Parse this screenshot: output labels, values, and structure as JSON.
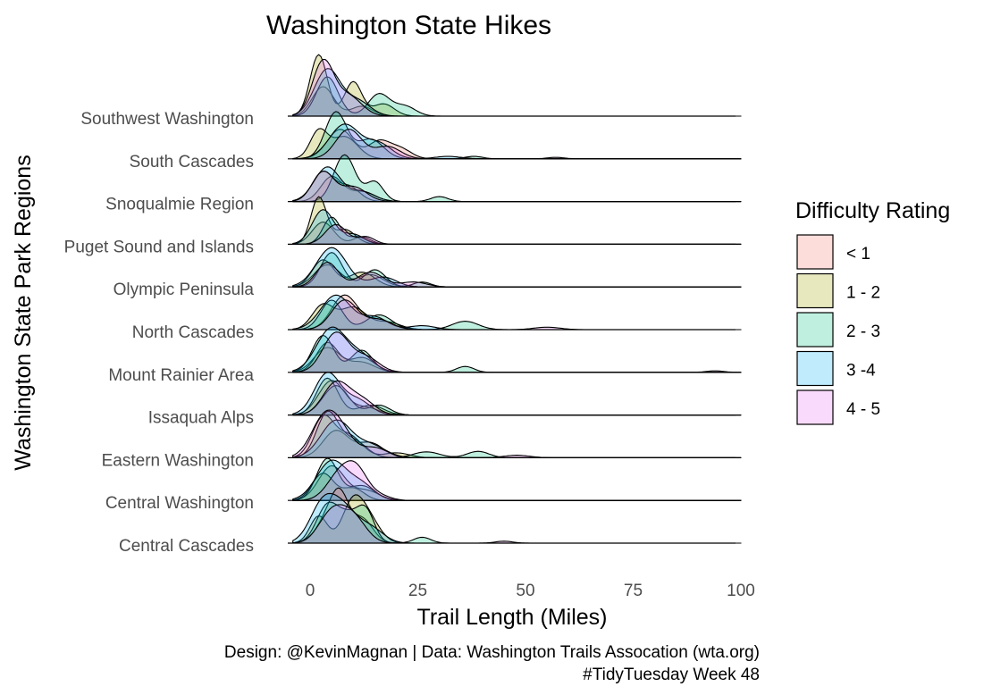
{
  "chart_data": {
    "type": "ridgeline",
    "title": "Washington State Hikes",
    "xlabel": "Trail Length (Miles)",
    "ylabel": "Washington State Park Regions",
    "xlim": [
      -5,
      100
    ],
    "x_ticks": [
      0,
      25,
      50,
      75,
      100
    ],
    "categories": [
      "Central Cascades",
      "Central Washington",
      "Eastern Washington",
      "Issaquah Alps",
      "Mount Rainier Area",
      "North Cascades",
      "Olympic Peninsula",
      "Puget Sound and Islands",
      "Snoqualmie Region",
      "South Cascades",
      "Southwest Washington"
    ],
    "legend": {
      "title": "Difficulty Rating",
      "position": "right",
      "items": [
        {
          "label": "< 1",
          "color": "#F8766D"
        },
        {
          "label": "1 - 2",
          "color": "#A3A500"
        },
        {
          "label": "2 - 3",
          "color": "#00BF7D"
        },
        {
          "label": "3  -4",
          "color": "#00B0F6"
        },
        {
          "label": "4 - 5",
          "color": "#E76BF3"
        }
      ]
    },
    "series": [
      {
        "name": "< 1",
        "color": "#F8766D"
      },
      {
        "name": "1 - 2",
        "color": "#A3A500"
      },
      {
        "name": "2 - 3",
        "color": "#00BF7D"
      },
      {
        "name": "3  -4",
        "color": "#00B0F6"
      },
      {
        "name": "4 - 5",
        "color": "#E76BF3"
      }
    ],
    "densities": [
      [
        [
          [
            4,
            0.5,
            2.5
          ],
          [
            7,
            0.8,
            2
          ],
          [
            12,
            0.5,
            2.5
          ]
        ],
        [
          [
            2,
            0.55,
            2
          ],
          [
            10,
            0.85,
            2.5
          ],
          [
            14,
            0.4,
            2.5
          ]
        ],
        [
          [
            4,
            0.75,
            2.5
          ],
          [
            9,
            0.5,
            2.5
          ],
          [
            13,
            0.6,
            2
          ],
          [
            26,
            0.12,
            2
          ]
        ],
        [
          [
            3,
            0.8,
            3
          ],
          [
            8,
            0.6,
            3
          ],
          [
            14,
            0.3,
            3
          ]
        ],
        [
          [
            5,
            0.6,
            3
          ],
          [
            10,
            0.5,
            3
          ],
          [
            45,
            0.04,
            2
          ]
        ]
      ],
      [
        [
          [
            5,
            0.7,
            3
          ],
          [
            13,
            0.2,
            3
          ]
        ],
        [
          [
            3,
            0.55,
            2.5
          ],
          [
            10,
            0.25,
            2.5
          ]
        ],
        [
          [
            4,
            0.85,
            2.5
          ],
          [
            12,
            0.3,
            3
          ]
        ],
        [
          [
            5,
            0.8,
            3.5
          ],
          [
            12,
            0.3,
            3
          ]
        ],
        [
          [
            7,
            0.55,
            3
          ],
          [
            11,
            0.5,
            2.5
          ],
          [
            16,
            0.1,
            2.5
          ]
        ]
      ],
      [
        [
          [
            6,
            0.55,
            3
          ],
          [
            14,
            0.3,
            3
          ]
        ],
        [
          [
            3,
            0.8,
            2.5
          ],
          [
            9,
            0.45,
            3
          ],
          [
            20,
            0.1,
            3
          ]
        ],
        [
          [
            4,
            0.9,
            2.5
          ],
          [
            10,
            0.35,
            3
          ],
          [
            27,
            0.12,
            3
          ],
          [
            39,
            0.13,
            2.5
          ]
        ],
        [
          [
            6,
            0.75,
            3.5
          ],
          [
            14,
            0.25,
            3.5
          ]
        ],
        [
          [
            3,
            0.7,
            3
          ],
          [
            7,
            0.5,
            3
          ],
          [
            15,
            0.2,
            3
          ],
          [
            48,
            0.05,
            3
          ]
        ]
      ],
      [
        [
          [
            5,
            0.7,
            3
          ],
          [
            13,
            0.15,
            3
          ]
        ],
        [
          [
            4,
            0.75,
            2.5
          ],
          [
            14,
            0.2,
            3
          ]
        ],
        [
          [
            6,
            0.6,
            3
          ],
          [
            16,
            0.2,
            2.5
          ]
        ],
        [
          [
            4,
            0.85,
            3
          ],
          [
            11,
            0.3,
            3
          ]
        ],
        [
          [
            6,
            0.65,
            3
          ],
          [
            12,
            0.3,
            3
          ]
        ]
      ],
      [
        [
          [
            4,
            0.5,
            3
          ],
          [
            12,
            0.2,
            3
          ]
        ],
        [
          [
            4,
            0.6,
            2.5
          ],
          [
            12,
            0.3,
            3
          ]
        ],
        [
          [
            3,
            0.75,
            2.5
          ],
          [
            12,
            0.45,
            2.5
          ],
          [
            36,
            0.12,
            2
          ]
        ],
        [
          [
            5,
            0.9,
            3.5
          ],
          [
            12,
            0.3,
            3
          ]
        ],
        [
          [
            6,
            0.8,
            3
          ],
          [
            13,
            0.3,
            3
          ],
          [
            94,
            0.03,
            2
          ]
        ]
      ],
      [
        [
          [
            8,
            0.7,
            3
          ],
          [
            16,
            0.2,
            3
          ]
        ],
        [
          [
            3,
            0.5,
            2.5
          ],
          [
            10,
            0.45,
            3
          ],
          [
            18,
            0.15,
            3
          ]
        ],
        [
          [
            5,
            0.6,
            2.5
          ],
          [
            16,
            0.3,
            3
          ],
          [
            36,
            0.17,
            3
          ]
        ],
        [
          [
            6,
            0.7,
            3.5
          ],
          [
            15,
            0.25,
            3
          ],
          [
            26,
            0.08,
            3
          ]
        ],
        [
          [
            8,
            0.6,
            3
          ],
          [
            16,
            0.2,
            3
          ],
          [
            55,
            0.05,
            3
          ]
        ]
      ],
      [
        [
          [
            4,
            0.45,
            3
          ],
          [
            14,
            0.25,
            3
          ]
        ],
        [
          [
            3,
            0.55,
            2.5
          ],
          [
            12,
            0.3,
            3
          ]
        ],
        [
          [
            5,
            0.7,
            2.5
          ],
          [
            15,
            0.35,
            2.5
          ],
          [
            26,
            0.1,
            2
          ]
        ],
        [
          [
            5,
            0.8,
            3.5
          ],
          [
            17,
            0.2,
            3
          ]
        ],
        [
          [
            4,
            0.5,
            2.5
          ],
          [
            14,
            0.3,
            3
          ],
          [
            24,
            0.1,
            3
          ]
        ]
      ],
      [
        [
          [
            3,
            0.45,
            2.5
          ],
          [
            12,
            0.15,
            2
          ]
        ],
        [
          [
            2,
            0.95,
            1.8
          ],
          [
            8,
            0.3,
            2.5
          ]
        ],
        [
          [
            5,
            0.55,
            2
          ],
          [
            11,
            0.15,
            2
          ]
        ],
        [
          [
            3,
            0.7,
            2.5
          ],
          [
            10,
            0.2,
            2.5
          ]
        ],
        [
          [
            6,
            0.4,
            2.5
          ],
          [
            13,
            0.15,
            2
          ]
        ]
      ],
      [
        [
          [
            5,
            0.5,
            2.5
          ],
          [
            12,
            0.2,
            3
          ]
        ],
        [
          [
            3,
            0.6,
            2.5
          ],
          [
            9,
            0.3,
            2.5
          ]
        ],
        [
          [
            8,
            0.95,
            2.5
          ],
          [
            15,
            0.4,
            2
          ],
          [
            30,
            0.1,
            2
          ]
        ],
        [
          [
            4,
            0.7,
            3
          ],
          [
            12,
            0.2,
            3
          ]
        ],
        [
          [
            3,
            0.6,
            2.5
          ],
          [
            10,
            0.3,
            3
          ]
        ]
      ],
      [
        [
          [
            7,
            0.6,
            3
          ],
          [
            16,
            0.35,
            2.5
          ],
          [
            21,
            0.2,
            2.5
          ]
        ],
        [
          [
            2,
            0.55,
            2
          ],
          [
            8,
            0.45,
            3
          ]
        ],
        [
          [
            6,
            0.95,
            2.5
          ],
          [
            14,
            0.4,
            3
          ],
          [
            38,
            0.05,
            2
          ]
        ],
        [
          [
            8,
            0.7,
            3.5
          ],
          [
            16,
            0.3,
            3
          ],
          [
            32,
            0.05,
            3
          ]
        ],
        [
          [
            9,
            0.6,
            3
          ],
          [
            18,
            0.25,
            3
          ],
          [
            57,
            0.03,
            2
          ]
        ]
      ],
      [
        [
          [
            3,
            0.6,
            2.5
          ],
          [
            12,
            0.2,
            2.5
          ]
        ],
        [
          [
            2,
            1.25,
            2
          ],
          [
            10,
            0.7,
            2
          ],
          [
            17,
            0.25,
            2.5
          ]
        ],
        [
          [
            4,
            0.8,
            2.5
          ],
          [
            16,
            0.45,
            2.5
          ],
          [
            22,
            0.2,
            2.5
          ]
        ],
        [
          [
            4,
            0.95,
            3
          ],
          [
            11,
            0.3,
            3
          ]
        ],
        [
          [
            3,
            1.1,
            2.5
          ],
          [
            9,
            0.4,
            3
          ]
        ]
      ]
    ]
  },
  "caption": {
    "line1": "Design: @KevinMagnan | Data: Washington Trails Assocation (wta.org)",
    "line2": "#TidyTuesday Week 48"
  }
}
